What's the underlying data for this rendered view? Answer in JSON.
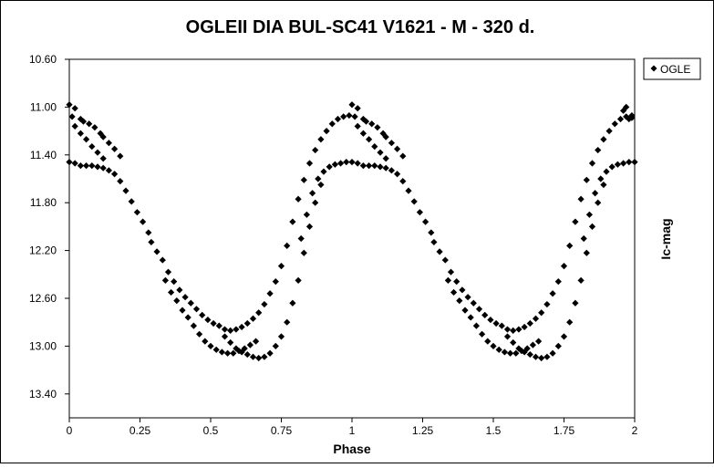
{
  "chart_data": {
    "type": "scatter",
    "title": "OGLEII DIA BUL-SC41 V1621 - M - 320 d.",
    "xlabel": "Phase",
    "ylabel": "Ic-mag",
    "xlim": [
      0,
      2
    ],
    "ylim": [
      10.6,
      13.6
    ],
    "y_inverted": true,
    "x_ticks": [
      "0",
      "0.25",
      "0.5",
      "0.75",
      "1",
      "1.25",
      "1.5",
      "1.75",
      "2"
    ],
    "x_tick_values": [
      0,
      0.25,
      0.5,
      0.75,
      1,
      1.25,
      1.5,
      1.75,
      2
    ],
    "y_ticks": [
      "10.60",
      "11.00",
      "11.40",
      "11.80",
      "12.20",
      "12.60",
      "13.00",
      "13.40"
    ],
    "y_tick_values": [
      10.6,
      11.0,
      11.4,
      11.8,
      12.2,
      12.6,
      13.0,
      13.4
    ],
    "grid": false,
    "legend_position": "top-right",
    "marker": "diamond",
    "marker_color": "#000000",
    "series": [
      {
        "name": "OGLE",
        "points": [
          [
            0.0,
            10.98
          ],
          [
            0.01,
            11.08
          ],
          [
            0.02,
            11.01
          ],
          [
            0.04,
            11.1
          ],
          [
            0.05,
            11.12
          ],
          [
            0.07,
            11.14
          ],
          [
            0.09,
            11.17
          ],
          [
            0.11,
            11.22
          ],
          [
            0.12,
            11.25
          ],
          [
            0.14,
            11.3
          ],
          [
            0.16,
            11.35
          ],
          [
            0.18,
            11.41
          ],
          [
            0.02,
            11.16
          ],
          [
            0.04,
            11.22
          ],
          [
            0.06,
            11.27
          ],
          [
            0.08,
            11.33
          ],
          [
            0.1,
            11.38
          ],
          [
            0.12,
            11.43
          ],
          [
            0.0,
            11.46
          ],
          [
            0.02,
            11.47
          ],
          [
            0.04,
            11.49
          ],
          [
            0.06,
            11.49
          ],
          [
            0.08,
            11.49
          ],
          [
            0.1,
            11.5
          ],
          [
            0.12,
            11.51
          ],
          [
            0.14,
            11.53
          ],
          [
            0.16,
            11.56
          ],
          [
            0.18,
            11.62
          ],
          [
            0.2,
            11.7
          ],
          [
            0.22,
            11.79
          ],
          [
            0.24,
            11.88
          ],
          [
            0.26,
            11.96
          ],
          [
            0.28,
            12.05
          ],
          [
            0.29,
            12.13
          ],
          [
            0.31,
            12.21
          ],
          [
            0.33,
            12.28
          ],
          [
            0.35,
            12.38
          ],
          [
            0.37,
            12.46
          ],
          [
            0.39,
            12.53
          ],
          [
            0.41,
            12.59
          ],
          [
            0.43,
            12.64
          ],
          [
            0.45,
            12.69
          ],
          [
            0.47,
            12.74
          ],
          [
            0.49,
            12.78
          ],
          [
            0.51,
            12.81
          ],
          [
            0.53,
            12.83
          ],
          [
            0.55,
            12.86
          ],
          [
            0.57,
            12.87
          ],
          [
            0.59,
            12.86
          ],
          [
            0.61,
            12.84
          ],
          [
            0.63,
            12.81
          ],
          [
            0.65,
            12.77
          ],
          [
            0.67,
            12.72
          ],
          [
            0.69,
            12.65
          ],
          [
            0.71,
            12.56
          ],
          [
            0.73,
            12.46
          ],
          [
            0.75,
            12.33
          ],
          [
            0.77,
            12.16
          ],
          [
            0.79,
            11.96
          ],
          [
            0.81,
            11.77
          ],
          [
            0.83,
            11.61
          ],
          [
            0.85,
            11.47
          ],
          [
            0.87,
            11.36
          ],
          [
            0.89,
            11.27
          ],
          [
            0.91,
            11.2
          ],
          [
            0.93,
            11.14
          ],
          [
            0.95,
            11.1
          ],
          [
            0.97,
            11.08
          ],
          [
            0.99,
            11.07
          ],
          [
            0.34,
            12.45
          ],
          [
            0.36,
            12.55
          ],
          [
            0.38,
            12.62
          ],
          [
            0.4,
            12.7
          ],
          [
            0.42,
            12.76
          ],
          [
            0.44,
            12.83
          ],
          [
            0.46,
            12.9
          ],
          [
            0.48,
            12.96
          ],
          [
            0.5,
            13.0
          ],
          [
            0.52,
            13.03
          ],
          [
            0.54,
            13.05
          ],
          [
            0.56,
            13.06
          ],
          [
            0.58,
            13.06
          ],
          [
            0.6,
            13.04
          ],
          [
            0.62,
            13.02
          ],
          [
            0.64,
            12.99
          ],
          [
            0.66,
            12.96
          ],
          [
            0.55,
            12.92
          ],
          [
            0.57,
            12.97
          ],
          [
            0.59,
            13.02
          ],
          [
            0.61,
            13.05
          ],
          [
            0.63,
            13.07
          ],
          [
            0.65,
            13.09
          ],
          [
            0.67,
            13.1
          ],
          [
            0.69,
            13.09
          ],
          [
            0.71,
            13.06
          ],
          [
            0.73,
            13.0
          ],
          [
            0.75,
            12.92
          ],
          [
            0.77,
            12.8
          ],
          [
            0.79,
            12.64
          ],
          [
            0.81,
            12.45
          ],
          [
            0.83,
            12.22
          ],
          [
            0.85,
            12.0
          ],
          [
            0.87,
            11.8
          ],
          [
            0.89,
            11.65
          ],
          [
            0.82,
            12.1
          ],
          [
            0.84,
            11.9
          ],
          [
            0.86,
            11.72
          ],
          [
            0.88,
            11.6
          ],
          [
            0.9,
            11.54
          ],
          [
            0.92,
            11.5
          ],
          [
            0.94,
            11.48
          ],
          [
            0.96,
            11.47
          ],
          [
            0.98,
            11.46
          ],
          [
            1.0,
            11.46
          ],
          [
            1.0,
            10.98
          ],
          [
            1.01,
            11.08
          ],
          [
            1.02,
            11.01
          ],
          [
            1.04,
            11.1
          ],
          [
            1.05,
            11.12
          ],
          [
            1.07,
            11.14
          ],
          [
            1.09,
            11.17
          ],
          [
            1.11,
            11.22
          ],
          [
            1.12,
            11.25
          ],
          [
            1.14,
            11.3
          ],
          [
            1.16,
            11.35
          ],
          [
            1.18,
            11.41
          ],
          [
            1.02,
            11.16
          ],
          [
            1.04,
            11.22
          ],
          [
            1.06,
            11.27
          ],
          [
            1.08,
            11.33
          ],
          [
            1.1,
            11.38
          ],
          [
            1.12,
            11.43
          ],
          [
            1.02,
            11.47
          ],
          [
            1.04,
            11.49
          ],
          [
            1.06,
            11.49
          ],
          [
            1.08,
            11.49
          ],
          [
            1.1,
            11.5
          ],
          [
            1.12,
            11.51
          ],
          [
            1.14,
            11.53
          ],
          [
            1.16,
            11.56
          ],
          [
            1.18,
            11.62
          ],
          [
            1.2,
            11.7
          ],
          [
            1.22,
            11.79
          ],
          [
            1.24,
            11.88
          ],
          [
            1.26,
            11.96
          ],
          [
            1.28,
            12.05
          ],
          [
            1.29,
            12.13
          ],
          [
            1.31,
            12.21
          ],
          [
            1.33,
            12.28
          ],
          [
            1.35,
            12.38
          ],
          [
            1.37,
            12.46
          ],
          [
            1.39,
            12.53
          ],
          [
            1.41,
            12.59
          ],
          [
            1.43,
            12.64
          ],
          [
            1.45,
            12.69
          ],
          [
            1.47,
            12.74
          ],
          [
            1.49,
            12.78
          ],
          [
            1.51,
            12.81
          ],
          [
            1.53,
            12.83
          ],
          [
            1.55,
            12.86
          ],
          [
            1.57,
            12.87
          ],
          [
            1.59,
            12.86
          ],
          [
            1.61,
            12.84
          ],
          [
            1.63,
            12.81
          ],
          [
            1.65,
            12.77
          ],
          [
            1.67,
            12.72
          ],
          [
            1.69,
            12.65
          ],
          [
            1.71,
            12.56
          ],
          [
            1.73,
            12.46
          ],
          [
            1.75,
            12.33
          ],
          [
            1.77,
            12.16
          ],
          [
            1.79,
            11.96
          ],
          [
            1.81,
            11.77
          ],
          [
            1.83,
            11.61
          ],
          [
            1.85,
            11.47
          ],
          [
            1.87,
            11.36
          ],
          [
            1.89,
            11.27
          ],
          [
            1.91,
            11.2
          ],
          [
            1.93,
            11.14
          ],
          [
            1.95,
            11.1
          ],
          [
            1.97,
            11.08
          ],
          [
            1.99,
            11.07
          ],
          [
            1.34,
            12.45
          ],
          [
            1.36,
            12.55
          ],
          [
            1.38,
            12.62
          ],
          [
            1.4,
            12.7
          ],
          [
            1.42,
            12.76
          ],
          [
            1.44,
            12.83
          ],
          [
            1.46,
            12.9
          ],
          [
            1.48,
            12.96
          ],
          [
            1.5,
            13.0
          ],
          [
            1.52,
            13.03
          ],
          [
            1.54,
            13.05
          ],
          [
            1.56,
            13.06
          ],
          [
            1.58,
            13.06
          ],
          [
            1.6,
            13.04
          ],
          [
            1.62,
            13.02
          ],
          [
            1.64,
            12.99
          ],
          [
            1.66,
            12.96
          ],
          [
            1.55,
            12.92
          ],
          [
            1.57,
            12.97
          ],
          [
            1.59,
            13.02
          ],
          [
            1.61,
            13.05
          ],
          [
            1.63,
            13.07
          ],
          [
            1.65,
            13.09
          ],
          [
            1.67,
            13.1
          ],
          [
            1.69,
            13.09
          ],
          [
            1.71,
            13.06
          ],
          [
            1.73,
            13.0
          ],
          [
            1.75,
            12.92
          ],
          [
            1.77,
            12.8
          ],
          [
            1.79,
            12.64
          ],
          [
            1.81,
            12.45
          ],
          [
            1.83,
            12.22
          ],
          [
            1.85,
            12.0
          ],
          [
            1.87,
            11.8
          ],
          [
            1.89,
            11.65
          ],
          [
            1.82,
            12.1
          ],
          [
            1.84,
            11.9
          ],
          [
            1.86,
            11.72
          ],
          [
            1.88,
            11.6
          ],
          [
            1.9,
            11.54
          ],
          [
            1.92,
            11.5
          ],
          [
            1.94,
            11.48
          ],
          [
            1.96,
            11.47
          ],
          [
            1.98,
            11.46
          ],
          [
            2.0,
            11.46
          ],
          [
            1.96,
            11.03
          ],
          [
            1.97,
            11.0
          ],
          [
            1.98,
            11.1
          ],
          [
            1.99,
            11.09
          ]
        ]
      }
    ]
  }
}
